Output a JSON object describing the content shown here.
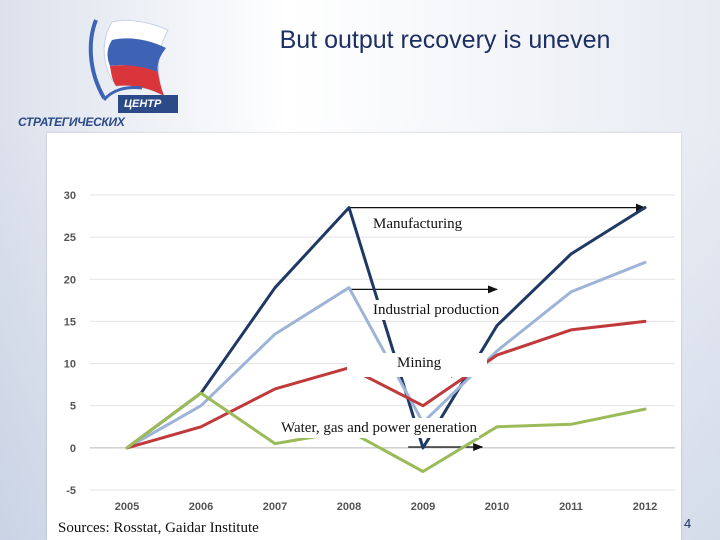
{
  "slide": {
    "title": "But output recovery is uneven",
    "sources": "Sources: Rosstat, Gaidar Institute",
    "page_number": "4"
  },
  "logo": {
    "word_top": "ЦЕНТР",
    "word_bottom": "СТРАТЕГИЧЕСКИХ"
  },
  "chart_data": {
    "type": "line",
    "title": "",
    "xlabel": "",
    "ylabel": "",
    "x": [
      "2005",
      "2006",
      "2007",
      "2008",
      "2009",
      "2010",
      "2011",
      "2012"
    ],
    "ylim": [
      -5,
      30
    ],
    "yticks": [
      -5,
      0,
      5,
      10,
      15,
      20,
      25,
      30
    ],
    "grid": true,
    "series": [
      {
        "name": "Manufacturing",
        "color": "#1f3864",
        "points": [
          [
            2005,
            0
          ],
          [
            2006,
            6.5
          ],
          [
            2007,
            19
          ],
          [
            2008,
            28.5
          ],
          [
            2009,
            0
          ],
          [
            2010,
            14.5
          ],
          [
            2011,
            23
          ],
          [
            2012,
            28.5
          ]
        ]
      },
      {
        "name": "Industrial production",
        "color": "#9db4d8",
        "points": [
          [
            2005,
            0
          ],
          [
            2006,
            5
          ],
          [
            2007,
            13.5
          ],
          [
            2008,
            19
          ],
          [
            2009,
            3
          ],
          [
            2010,
            11.5
          ],
          [
            2011,
            18.5
          ],
          [
            2012,
            22
          ]
        ]
      },
      {
        "name": "Mining",
        "color": "#c0393b",
        "points": [
          [
            2005,
            0
          ],
          [
            2006,
            2.5
          ],
          [
            2007,
            7
          ],
          [
            2008,
            9.5
          ],
          [
            2009,
            5
          ],
          [
            2010,
            11
          ],
          [
            2011,
            14
          ],
          [
            2012,
            15
          ]
        ]
      },
      {
        "name": "Water, gas and power generation",
        "color": "#9bbb59",
        "points": [
          [
            2005,
            0
          ],
          [
            2006,
            6.5
          ],
          [
            2007,
            0.5
          ],
          [
            2008,
            2
          ],
          [
            2009,
            -2.8
          ],
          [
            2010,
            2.5
          ],
          [
            2011,
            2.8
          ],
          [
            2012,
            4.6
          ]
        ]
      }
    ],
    "annotations": [
      {
        "text": "Manufacturing",
        "arrow_from": [
          2008,
          28.5
        ],
        "arrow_to": [
          2012,
          28.5
        ]
      },
      {
        "text": "Industrial production",
        "arrow_from": [
          2008,
          18.8
        ],
        "arrow_to": [
          2010,
          18.8
        ]
      },
      {
        "text": "Mining",
        "arrow_from": [
          2008,
          8.8
        ],
        "arrow_to": [
          2009.5,
          8.8
        ]
      },
      {
        "text": "Water, gas and power generation",
        "arrow_from": [
          2008.8,
          0.1
        ],
        "arrow_to": [
          2009.8,
          0.1
        ]
      }
    ]
  }
}
